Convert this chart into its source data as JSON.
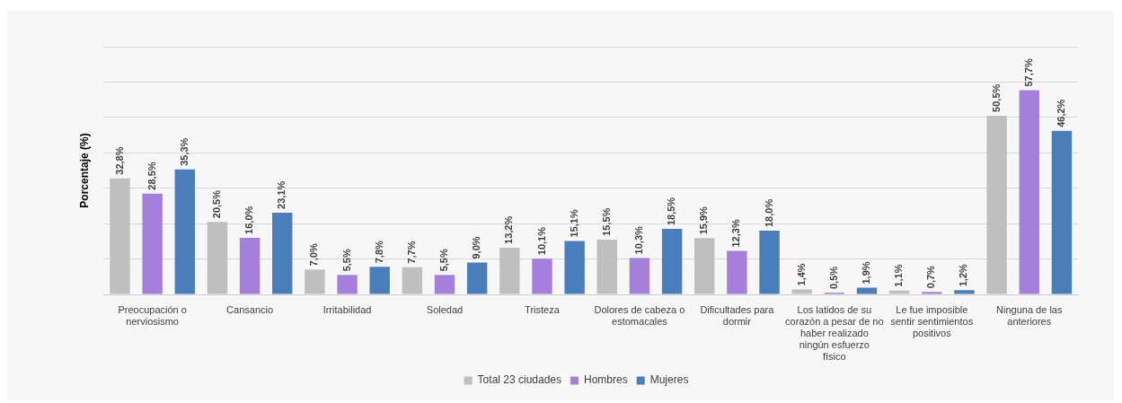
{
  "chart_data": {
    "type": "bar",
    "ylabel": "Porcentaje (%)",
    "categories": [
      "Preocupación o nerviosismo",
      "Cansancio",
      "Irritabilidad",
      "Soledad",
      "Tristeza",
      "Dolores de cabeza o estomacales",
      "Dificultades para dormir",
      "Los latidos de su corazón a pesar de no haber realizado ningún esfuerzo físico",
      "Le fue imposible sentir sentimientos positivos",
      "Ninguna de las anteriores"
    ],
    "series": [
      {
        "name": "Total 23 ciudades",
        "color": "#bfbfbf",
        "values": [
          32.8,
          20.5,
          7.0,
          7.7,
          13.2,
          15.5,
          15.9,
          1.4,
          1.1,
          50.5
        ],
        "value_labels": [
          "32,8%",
          "20,5%",
          "7,0%",
          "7,7%",
          "13,2%",
          "15,5%",
          "15,9%",
          "1,4%",
          "1,1%",
          "50,5%"
        ]
      },
      {
        "name": "Hombres",
        "color": "#a67fdc",
        "values": [
          28.5,
          16.0,
          5.5,
          5.5,
          10.1,
          10.3,
          12.3,
          0.5,
          0.7,
          57.7
        ],
        "value_labels": [
          "28,5%",
          "16,0%",
          "5,5%",
          "5,5%",
          "10,1%",
          "10,3%",
          "12,3%",
          "0,5%",
          "0,7%",
          "57,7%"
        ]
      },
      {
        "name": "Mujeres",
        "color": "#4a7ebb",
        "values": [
          35.3,
          23.1,
          7.8,
          9.0,
          15.1,
          18.5,
          18.0,
          1.9,
          1.2,
          46.2
        ],
        "value_labels": [
          "35,3%",
          "23,1%",
          "7,8%",
          "9,0%",
          "15,1%",
          "18,5%",
          "18,0%",
          "1,9%",
          "1,2%",
          "46,2%"
        ]
      }
    ],
    "ylim": [
      0,
      70
    ],
    "yticks": [
      {
        "value": 0,
        "label": null
      },
      {
        "value": 10,
        "label": null
      },
      {
        "value": 20,
        "label": null
      },
      {
        "value": 30,
        "label": null
      },
      {
        "value": 40,
        "label": null
      },
      {
        "value": 50,
        "label": null
      },
      {
        "value": 60,
        "label": null
      },
      {
        "value": 70,
        "label": null
      }
    ],
    "tick_labels": "x",
    "grid": "y",
    "legend": "bottom"
  }
}
